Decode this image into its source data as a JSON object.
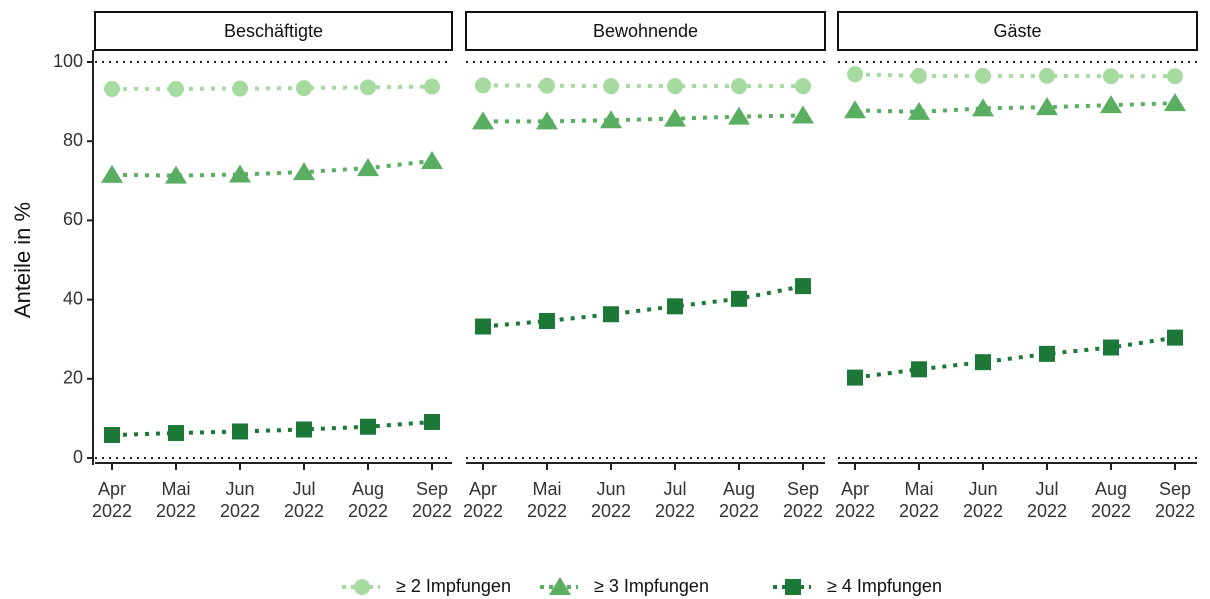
{
  "chart_data": [
    {
      "type": "line",
      "title": "Beschäftigte",
      "y_label": "Anteile in %",
      "categories": [
        "Apr 2022",
        "Mai 2022",
        "Jun 2022",
        "Jul 2022",
        "Aug 2022",
        "Sep 2022"
      ],
      "ylim": [
        0,
        100
      ],
      "yticks": [
        0,
        20,
        40,
        60,
        80,
        100
      ],
      "reference_lines": [
        0,
        100
      ],
      "series": [
        {
          "name": "≥ 2 Impfungen",
          "color": "#a6dba0",
          "marker": "circle",
          "values": [
            93.2,
            93.2,
            93.3,
            93.4,
            93.6,
            93.8
          ]
        },
        {
          "name": "≥ 3 Impfungen",
          "color": "#5aae61",
          "marker": "triangle",
          "values": [
            71.5,
            71.3,
            71.6,
            72.2,
            73.2,
            75.0
          ]
        },
        {
          "name": "≥ 4 Impfungen",
          "color": "#1b7837",
          "marker": "square",
          "values": [
            5.8,
            6.3,
            6.7,
            7.2,
            7.9,
            9.1
          ]
        }
      ]
    },
    {
      "type": "line",
      "title": "Bewohnende",
      "categories": [
        "Apr 2022",
        "Mai 2022",
        "Jun 2022",
        "Jul 2022",
        "Aug 2022",
        "Sep 2022"
      ],
      "ylim": [
        0,
        100
      ],
      "reference_lines": [
        0,
        100
      ],
      "series": [
        {
          "color": "#a6dba0",
          "marker": "circle",
          "values": [
            94.1,
            94.0,
            93.9,
            93.9,
            93.9,
            93.9
          ]
        },
        {
          "color": "#5aae61",
          "marker": "triangle",
          "values": [
            85.0,
            85.0,
            85.3,
            85.7,
            86.2,
            86.5
          ]
        },
        {
          "color": "#1b7837",
          "marker": "square",
          "values": [
            33.2,
            34.6,
            36.3,
            38.3,
            40.2,
            43.4
          ]
        }
      ]
    },
    {
      "type": "line",
      "title": "Gäste",
      "categories": [
        "Apr 2022",
        "Mai 2022",
        "Jun 2022",
        "Jul 2022",
        "Aug 2022",
        "Sep 2022"
      ],
      "ylim": [
        0,
        100
      ],
      "reference_lines": [
        0,
        100
      ],
      "series": [
        {
          "color": "#a6dba0",
          "marker": "circle",
          "values": [
            96.9,
            96.5,
            96.5,
            96.5,
            96.4,
            96.4
          ]
        },
        {
          "color": "#5aae61",
          "marker": "triangle",
          "values": [
            87.8,
            87.4,
            88.3,
            88.6,
            89.1,
            89.6
          ]
        },
        {
          "color": "#1b7837",
          "marker": "square",
          "values": [
            20.3,
            22.4,
            24.2,
            26.3,
            27.9,
            30.4
          ]
        }
      ]
    }
  ]
}
